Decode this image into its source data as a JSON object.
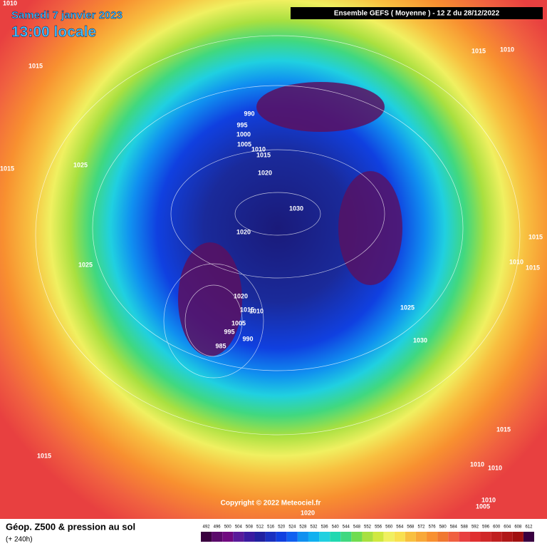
{
  "header": {
    "date": "Samedi 7 janvier 2023",
    "time": "13:00 locale",
    "model": "Ensemble GEFS  ( Moyenne )  -  12 Z du 28/12/2022"
  },
  "isobar_labels": [
    "1010",
    "1015",
    "1015",
    "1025",
    "1025",
    "1015",
    "1010",
    "990",
    "995",
    "1000",
    "1005",
    "1010",
    "1015",
    "1020",
    "1030",
    "1020",
    "1015",
    "1010",
    "1015",
    "1025",
    "1030",
    "1020",
    "1015",
    "1010",
    "1005",
    "995",
    "990",
    "985",
    "1015",
    "1015",
    "1010",
    "1010",
    "1010",
    "1005",
    "1020"
  ],
  "copyright": "Copyright © 2022 Meteociel.fr",
  "footer": {
    "title": "Géop. Z500 & pression au sol",
    "subtitle": "(+ 240h)",
    "levels": [
      492,
      496,
      500,
      504,
      508,
      512,
      516,
      520,
      524,
      528,
      532,
      536,
      540,
      544,
      548,
      552,
      556,
      560,
      564,
      568,
      572,
      576,
      580,
      584,
      588,
      592,
      596,
      600,
      604,
      608,
      612
    ]
  }
}
